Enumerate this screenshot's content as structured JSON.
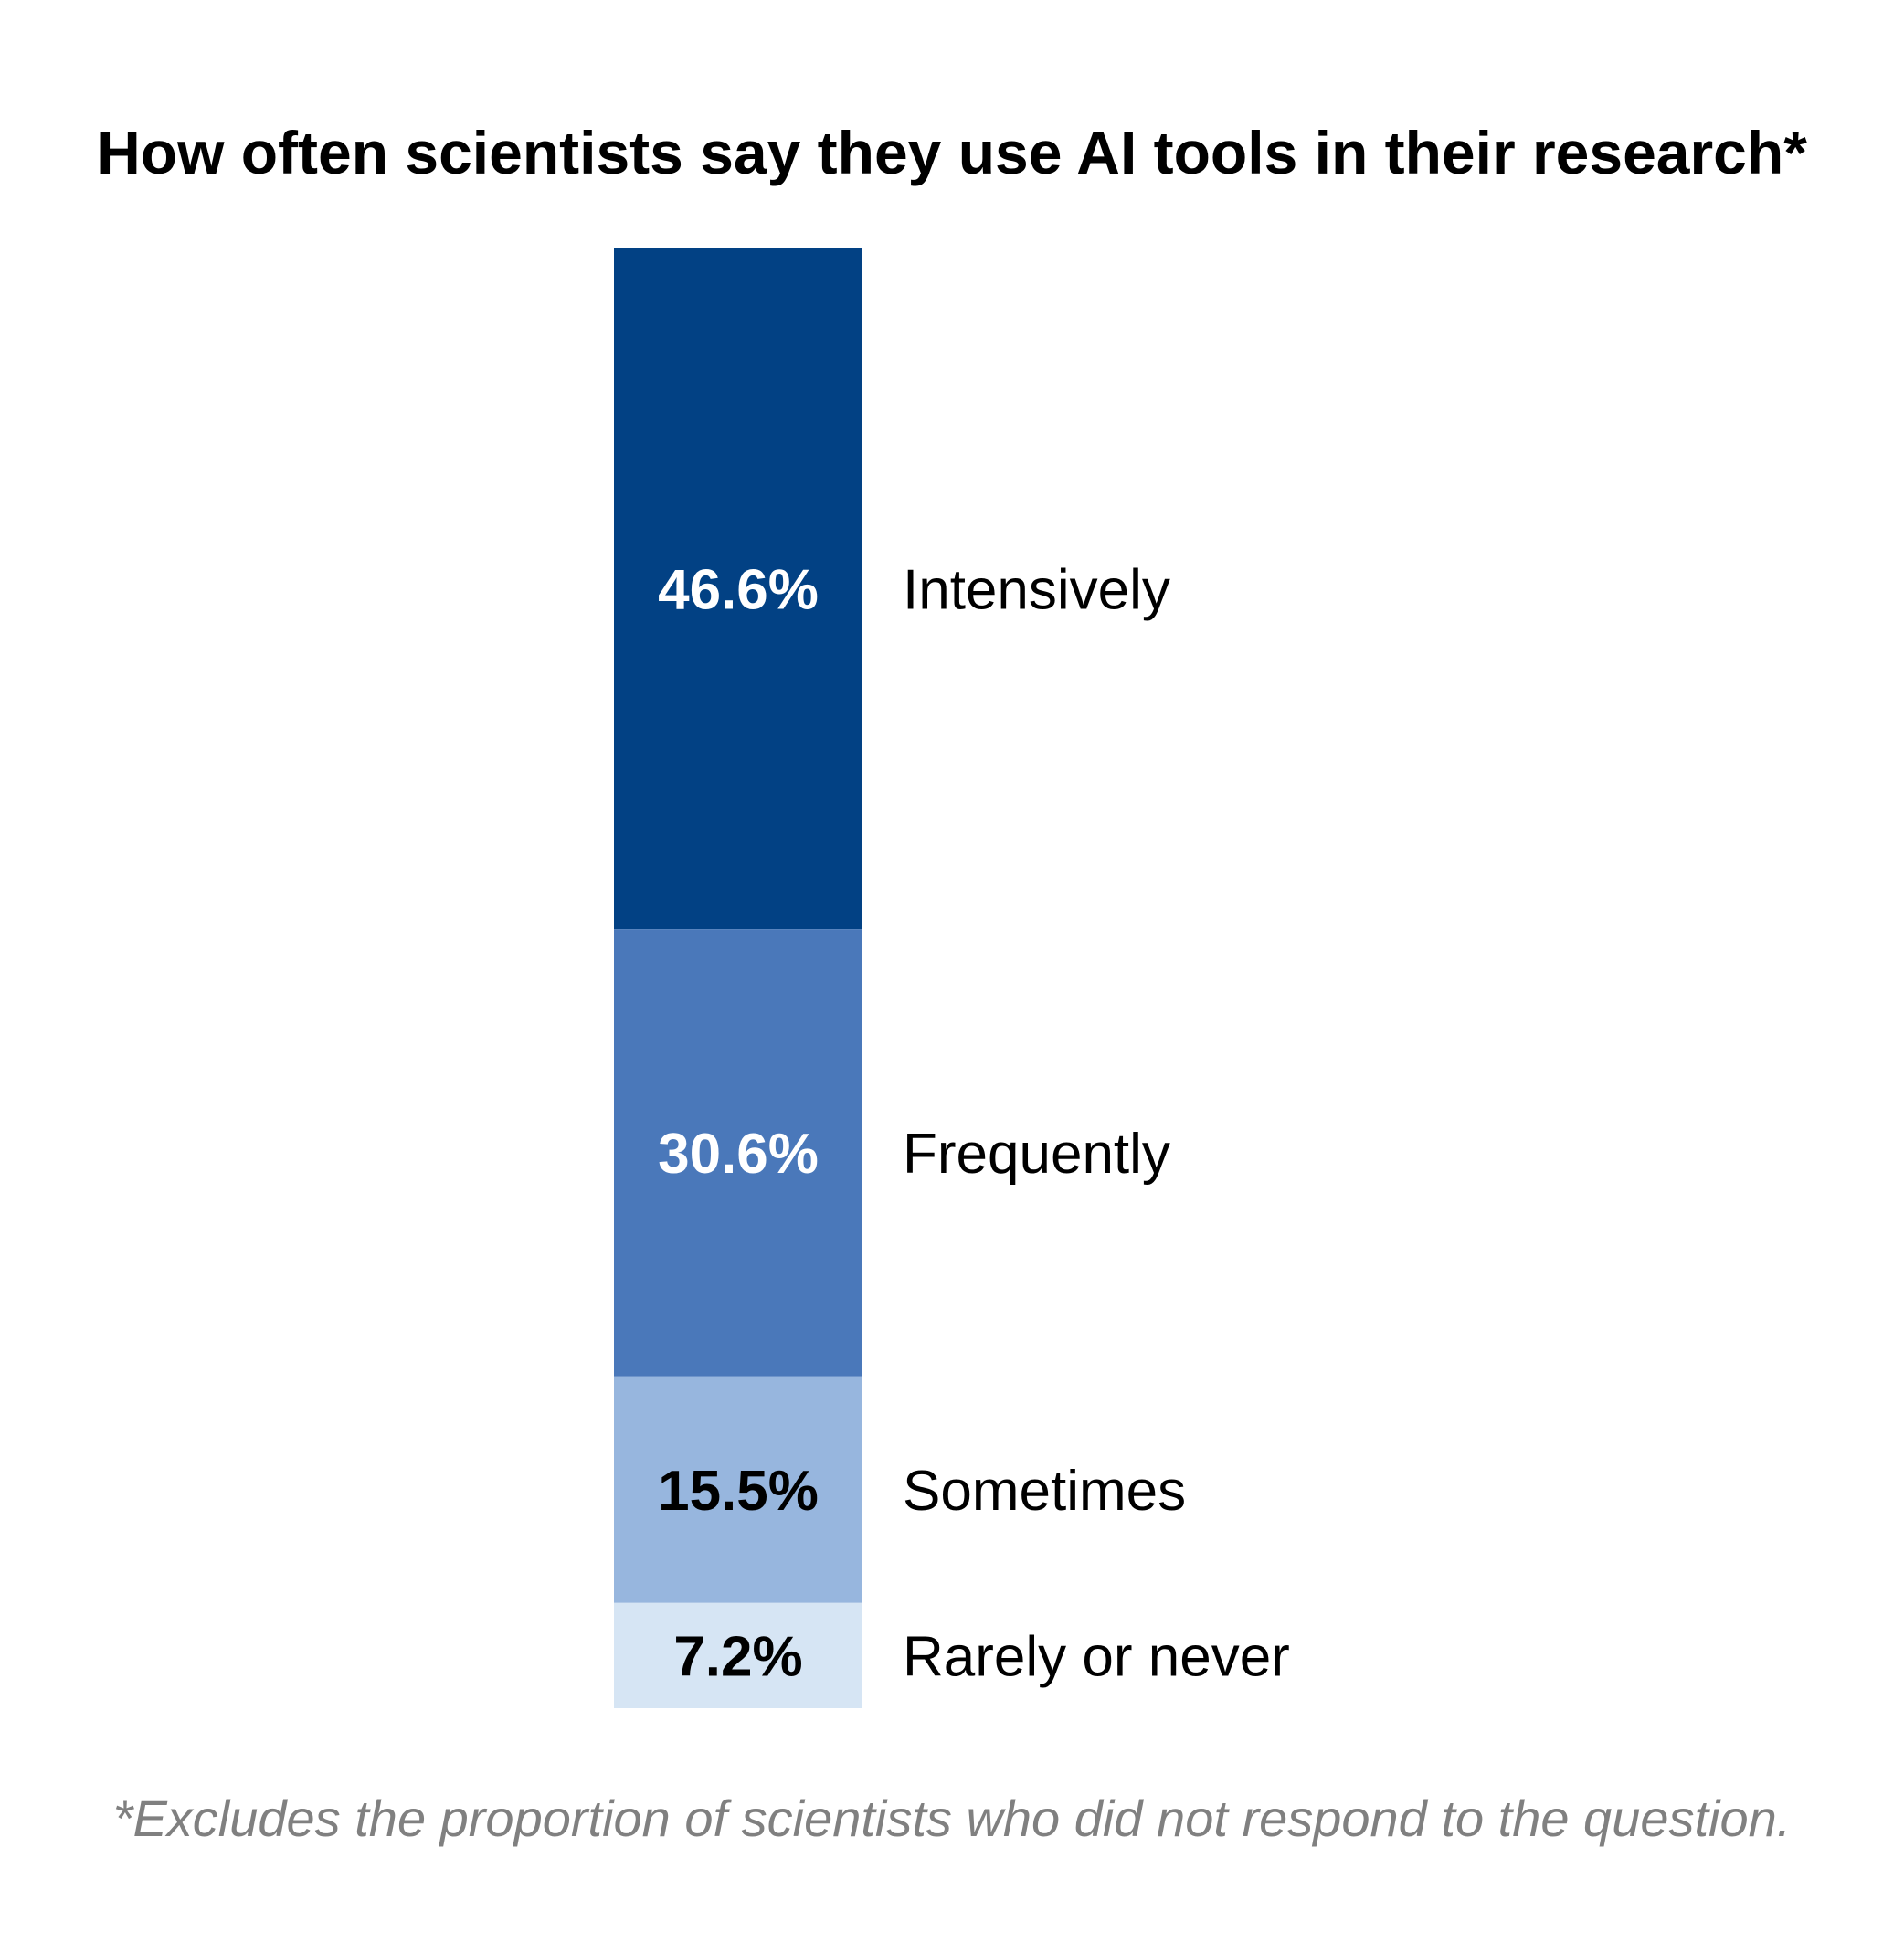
{
  "chart_data": {
    "type": "bar",
    "orientation": "vertical-stacked",
    "title": "How often scientists say they use AI tools in their research*",
    "footnote": "*Excludes the proportion of scientists who did not respond to the question.",
    "unit": "%",
    "segments": [
      {
        "category": "Intensively",
        "value": 46.6,
        "label": "46.6%",
        "color": "#024184",
        "label_color": "#ffffff"
      },
      {
        "category": "Frequently",
        "value": 30.6,
        "label": "30.6%",
        "color": "#4a78ba",
        "label_color": "#ffffff"
      },
      {
        "category": "Sometimes",
        "value": 15.5,
        "label": "15.5%",
        "color": "#97b6de",
        "label_color": "#000000"
      },
      {
        "category": "Rarely or never",
        "value": 7.2,
        "label": "7.2%",
        "color": "#d6e5f4",
        "label_color": "#000000"
      }
    ]
  }
}
